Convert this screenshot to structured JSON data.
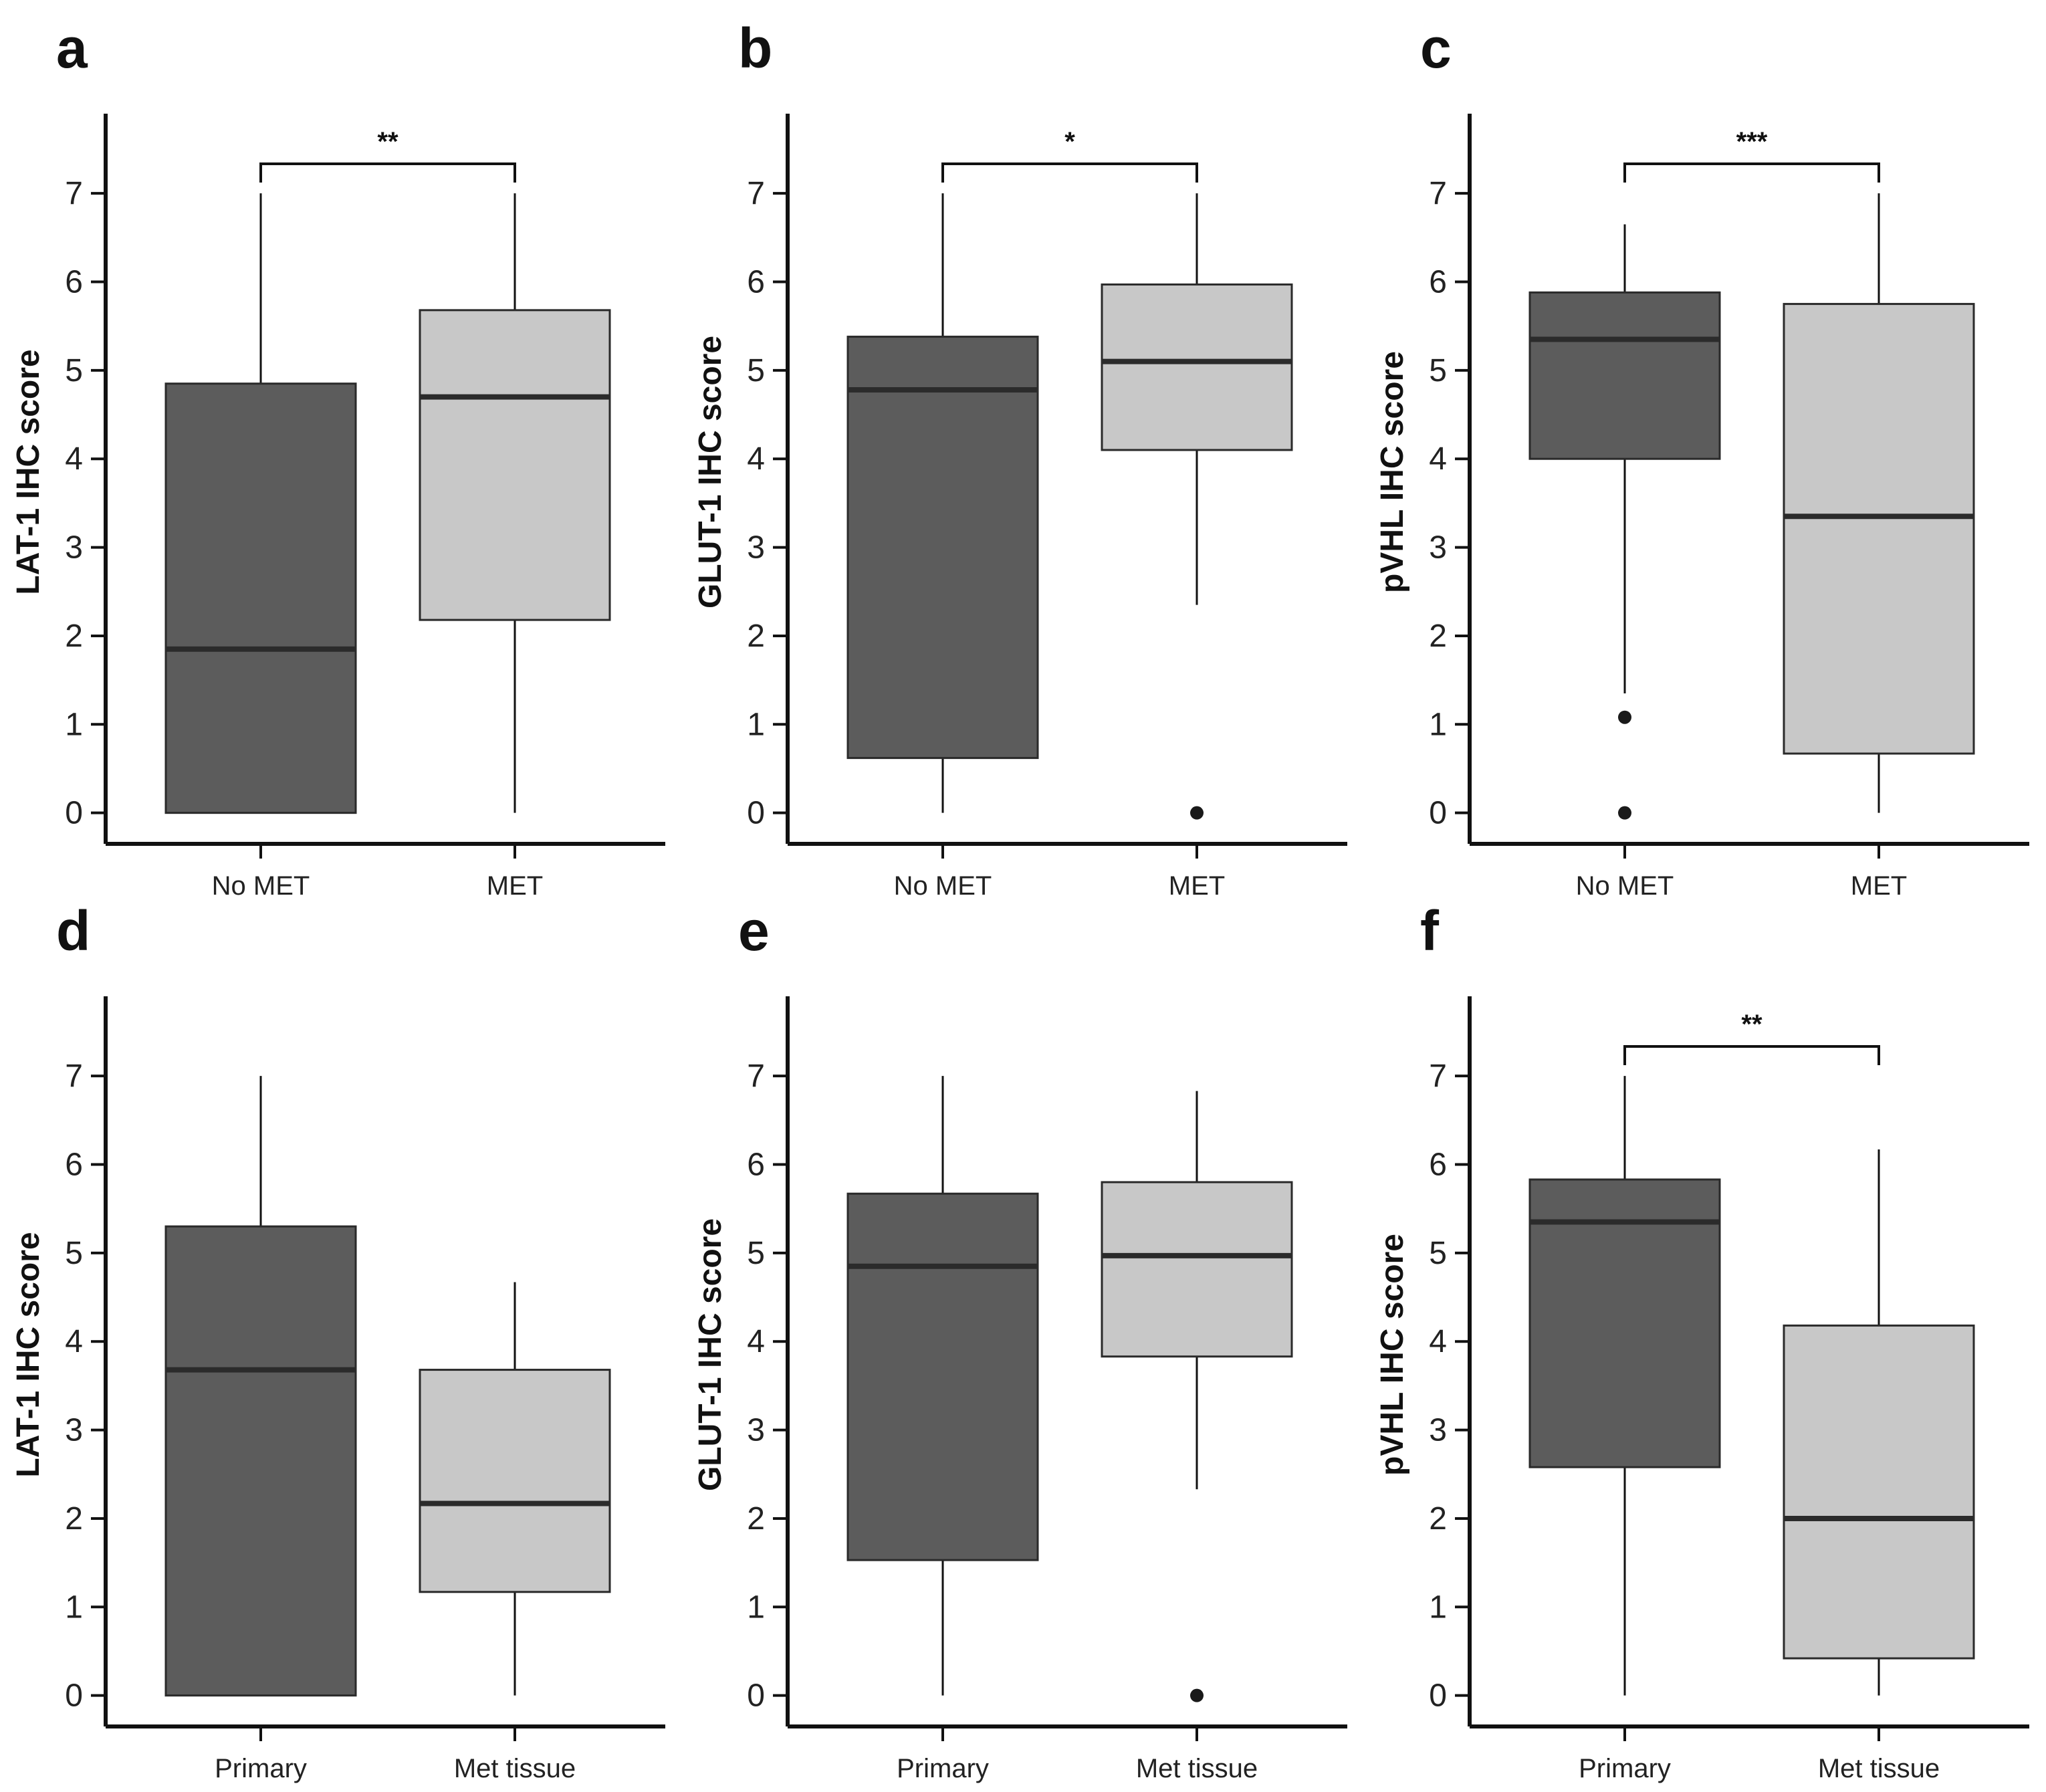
{
  "colors": {
    "dark_box": "#5c5c5c",
    "light_box": "#c8c8c8",
    "line": "#111111",
    "median": "#2b2b2b"
  },
  "chart_data": [
    {
      "type": "box",
      "panel": "a",
      "ylabel": "LAT-1 IHC score",
      "ylim": [
        -0.35,
        7.9
      ],
      "yticks": [
        0,
        1,
        2,
        3,
        4,
        5,
        6,
        7
      ],
      "categories": [
        "No MET",
        "MET"
      ],
      "boxes": [
        {
          "category": "No MET",
          "whisker_low": 0,
          "q1": 0,
          "median": 1.85,
          "q3": 4.85,
          "whisker_high": 7,
          "outliers": [],
          "fill": "dark"
        },
        {
          "category": "MET",
          "whisker_low": 0,
          "q1": 2.18,
          "median": 4.7,
          "q3": 5.68,
          "whisker_high": 7,
          "outliers": [],
          "fill": "light"
        }
      ],
      "significance": "**"
    },
    {
      "type": "box",
      "panel": "b",
      "ylabel": "GLUT-1 IHC score",
      "ylim": [
        -0.35,
        7.9
      ],
      "yticks": [
        0,
        1,
        2,
        3,
        4,
        5,
        6,
        7
      ],
      "categories": [
        "No MET",
        "MET"
      ],
      "boxes": [
        {
          "category": "No MET",
          "whisker_low": 0,
          "q1": 0.62,
          "median": 4.78,
          "q3": 5.38,
          "whisker_high": 7,
          "outliers": [],
          "fill": "dark"
        },
        {
          "category": "MET",
          "whisker_low": 2.35,
          "q1": 4.1,
          "median": 5.1,
          "q3": 5.97,
          "whisker_high": 7,
          "outliers": [
            0
          ],
          "fill": "light"
        }
      ],
      "significance": "*"
    },
    {
      "type": "box",
      "panel": "c",
      "ylabel": "pVHL IHC score",
      "ylim": [
        -0.35,
        7.9
      ],
      "yticks": [
        0,
        1,
        2,
        3,
        4,
        5,
        6,
        7
      ],
      "categories": [
        "No MET",
        "MET"
      ],
      "boxes": [
        {
          "category": "No MET",
          "whisker_low": 1.35,
          "q1": 4.0,
          "median": 5.35,
          "q3": 5.88,
          "whisker_high": 6.65,
          "outliers": [
            1.08,
            0
          ],
          "fill": "dark"
        },
        {
          "category": "MET",
          "whisker_low": 0,
          "q1": 0.67,
          "median": 3.35,
          "q3": 5.75,
          "whisker_high": 7,
          "outliers": [],
          "fill": "light"
        }
      ],
      "significance": "***"
    },
    {
      "type": "box",
      "panel": "d",
      "ylabel": "LAT-1 IHC score",
      "ylim": [
        -0.35,
        7.9
      ],
      "yticks": [
        0,
        1,
        2,
        3,
        4,
        5,
        6,
        7
      ],
      "categories": [
        "Primary",
        "Met tissue"
      ],
      "boxes": [
        {
          "category": "Primary",
          "whisker_low": 0,
          "q1": 0,
          "median": 3.68,
          "q3": 5.3,
          "whisker_high": 7,
          "outliers": [],
          "fill": "dark"
        },
        {
          "category": "Met tissue",
          "whisker_low": 0,
          "q1": 1.17,
          "median": 2.17,
          "q3": 3.68,
          "whisker_high": 4.67,
          "outliers": [],
          "fill": "light"
        }
      ],
      "significance": ""
    },
    {
      "type": "box",
      "panel": "e",
      "ylabel": "GLUT-1 IHC score",
      "ylim": [
        -0.35,
        7.9
      ],
      "yticks": [
        0,
        1,
        2,
        3,
        4,
        5,
        6,
        7
      ],
      "categories": [
        "Primary",
        "Met tissue"
      ],
      "boxes": [
        {
          "category": "Primary",
          "whisker_low": 0,
          "q1": 1.53,
          "median": 4.85,
          "q3": 5.67,
          "whisker_high": 7,
          "outliers": [],
          "fill": "dark"
        },
        {
          "category": "Met tissue",
          "whisker_low": 2.33,
          "q1": 3.83,
          "median": 4.97,
          "q3": 5.8,
          "whisker_high": 6.83,
          "outliers": [
            0
          ],
          "fill": "light"
        }
      ],
      "significance": ""
    },
    {
      "type": "box",
      "panel": "f",
      "ylabel": "pVHL IHC score",
      "ylim": [
        -0.35,
        7.9
      ],
      "yticks": [
        0,
        1,
        2,
        3,
        4,
        5,
        6,
        7
      ],
      "categories": [
        "Primary",
        "Met tissue"
      ],
      "boxes": [
        {
          "category": "Primary",
          "whisker_low": 0,
          "q1": 2.58,
          "median": 5.35,
          "q3": 5.83,
          "whisker_high": 7,
          "outliers": [],
          "fill": "dark"
        },
        {
          "category": "Met tissue",
          "whisker_low": 0,
          "q1": 0.42,
          "median": 2.0,
          "q3": 4.18,
          "whisker_high": 6.17,
          "outliers": [],
          "fill": "light"
        }
      ],
      "significance": "**"
    }
  ]
}
